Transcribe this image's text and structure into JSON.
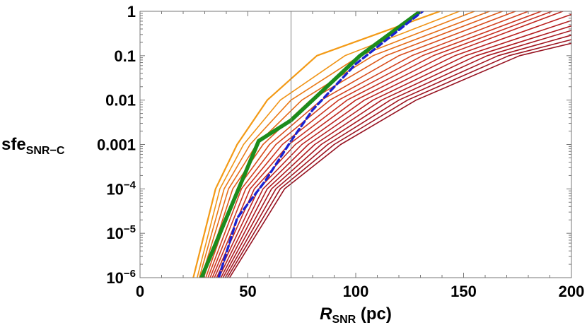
{
  "chart_data": {
    "type": "line",
    "xlabel": {
      "main": "R",
      "sub": "SNR",
      "unit": " (pc)"
    },
    "ylabel": {
      "main": "sfe",
      "sub": "SNR−C"
    },
    "xlim": [
      0,
      200
    ],
    "ylim": [
      1e-06,
      1
    ],
    "y_scale": "log",
    "grid": false,
    "legend": "none",
    "x_ticks": [
      0,
      50,
      100,
      150,
      200
    ],
    "x_tick_labels": [
      "0",
      "50",
      "100",
      "150",
      "200"
    ],
    "y_tick_labels": [
      {
        "value": 1,
        "label": "1"
      },
      {
        "value": 0.1,
        "label": "0.1"
      },
      {
        "value": 0.01,
        "label": "0.01"
      },
      {
        "value": 0.001,
        "label": "0.001"
      },
      {
        "value": 0.0001,
        "label": "10",
        "exp": "−4"
      },
      {
        "value": 1e-05,
        "label": "10",
        "exp": "−5"
      },
      {
        "value": 1e-06,
        "label": "10",
        "exp": "−6"
      }
    ],
    "vertical_line": {
      "x": 70,
      "color": "#808080"
    },
    "series": [
      {
        "points": [
          [
            24.7,
            1e-06
          ],
          [
            35,
            0.0001
          ],
          [
            45,
            0.001
          ],
          [
            59,
            0.01
          ],
          [
            82,
            0.1
          ],
          [
            139,
            1
          ]
        ],
        "color": "#f39a16",
        "width": 2.2,
        "dash": "none"
      },
      {
        "points": [
          [
            26.5,
            1e-06
          ],
          [
            37,
            0.0001
          ],
          [
            48,
            0.001
          ],
          [
            65,
            0.01
          ],
          [
            95,
            0.1
          ],
          [
            148,
            1
          ]
        ],
        "color": "#f09416",
        "width": 1.6,
        "dash": "none"
      },
      {
        "points": [
          [
            27.5,
            1e-06
          ],
          [
            39,
            0.0001
          ],
          [
            51,
            0.001
          ],
          [
            70,
            0.01
          ],
          [
            102,
            0.1
          ],
          [
            155,
            1
          ]
        ],
        "color": "#ea7a16",
        "width": 1.6,
        "dash": "none"
      },
      {
        "points": [
          [
            28.5,
            1e-06
          ],
          [
            41,
            0.0001
          ],
          [
            54,
            0.001
          ],
          [
            75,
            0.01
          ],
          [
            108,
            0.1
          ],
          [
            162,
            1
          ]
        ],
        "color": "#e46a18",
        "width": 1.6,
        "dash": "none"
      },
      {
        "points": [
          [
            29.5,
            1e-06
          ],
          [
            43,
            0.0001
          ],
          [
            57,
            0.001
          ],
          [
            79,
            0.01
          ],
          [
            114,
            0.1
          ],
          [
            168,
            1
          ]
        ],
        "color": "#de5a1a",
        "width": 1.6,
        "dash": "none"
      },
      {
        "points": [
          [
            30.5,
            1e-06
          ],
          [
            45,
            0.0001
          ],
          [
            60,
            0.001
          ],
          [
            84,
            0.01
          ],
          [
            120,
            0.1
          ],
          [
            174,
            1
          ]
        ],
        "color": "#d84c1c",
        "width": 1.6,
        "dash": "none"
      },
      {
        "points": [
          [
            31.5,
            1e-06
          ],
          [
            47,
            0.0001
          ],
          [
            63,
            0.001
          ],
          [
            88,
            0.01
          ],
          [
            126,
            0.1
          ],
          [
            180,
            1
          ]
        ],
        "color": "#d2401e",
        "width": 1.6,
        "dash": "none"
      },
      {
        "points": [
          [
            32.5,
            1e-06
          ],
          [
            49,
            0.0001
          ],
          [
            66,
            0.001
          ],
          [
            92,
            0.01
          ],
          [
            131,
            0.1
          ],
          [
            186,
            1
          ]
        ],
        "color": "#cc3620",
        "width": 1.6,
        "dash": "none"
      },
      {
        "points": [
          [
            33.5,
            1e-06
          ],
          [
            51,
            0.0001
          ],
          [
            69,
            0.001
          ],
          [
            96,
            0.01
          ],
          [
            136,
            0.1
          ],
          [
            191,
            1
          ]
        ],
        "color": "#c62e20",
        "width": 1.6,
        "dash": "none"
      },
      {
        "points": [
          [
            34.5,
            1e-06
          ],
          [
            53,
            0.0001
          ],
          [
            72,
            0.001
          ],
          [
            100,
            0.01
          ],
          [
            141,
            0.1
          ],
          [
            196,
            1
          ]
        ],
        "color": "#c02820",
        "width": 1.6,
        "dash": "none"
      },
      {
        "points": [
          [
            35.5,
            1e-06
          ],
          [
            55,
            0.0001
          ],
          [
            75,
            0.001
          ],
          [
            104,
            0.01
          ],
          [
            146,
            0.1
          ],
          [
            200,
            0.85
          ]
        ],
        "color": "#ba2220",
        "width": 1.6,
        "dash": "none"
      },
      {
        "points": [
          [
            36.5,
            1e-06
          ],
          [
            57,
            0.0001
          ],
          [
            78,
            0.001
          ],
          [
            108,
            0.01
          ],
          [
            151,
            0.1
          ],
          [
            200,
            0.62
          ]
        ],
        "color": "#b41e20",
        "width": 1.6,
        "dash": "none"
      },
      {
        "points": [
          [
            37.5,
            1e-06
          ],
          [
            59,
            0.0001
          ],
          [
            81,
            0.001
          ],
          [
            112,
            0.01
          ],
          [
            156,
            0.1
          ],
          [
            200,
            0.47
          ]
        ],
        "color": "#ae1a20",
        "width": 1.6,
        "dash": "none"
      },
      {
        "points": [
          [
            38.5,
            1e-06
          ],
          [
            61,
            0.0001
          ],
          [
            84,
            0.001
          ],
          [
            116,
            0.01
          ],
          [
            161,
            0.1
          ],
          [
            200,
            0.37
          ]
        ],
        "color": "#a81820",
        "width": 1.6,
        "dash": "none"
      },
      {
        "points": [
          [
            39.5,
            1e-06
          ],
          [
            63,
            0.0001
          ],
          [
            87,
            0.001
          ],
          [
            120,
            0.01
          ],
          [
            166,
            0.1
          ],
          [
            200,
            0.29
          ]
        ],
        "color": "#a21620",
        "width": 1.6,
        "dash": "none"
      },
      {
        "points": [
          [
            40.5,
            1e-06
          ],
          [
            65,
            0.0001
          ],
          [
            90,
            0.001
          ],
          [
            124,
            0.01
          ],
          [
            171,
            0.1
          ],
          [
            200,
            0.23
          ]
        ],
        "color": "#9c1420",
        "width": 1.6,
        "dash": "none"
      },
      {
        "points": [
          [
            41.5,
            1e-06
          ],
          [
            67,
            0.0001
          ],
          [
            93,
            0.001
          ],
          [
            128,
            0.01
          ],
          [
            176,
            0.1
          ],
          [
            200,
            0.19
          ]
        ],
        "color": "#961220",
        "width": 1.6,
        "dash": "none"
      },
      {
        "points": [
          [
            28.5,
            1e-06
          ],
          [
            40,
            2.2e-05
          ],
          [
            55,
            0.0012
          ],
          [
            70,
            0.0035
          ],
          [
            80,
            0.01
          ],
          [
            102,
            0.1
          ],
          [
            130,
            1
          ]
        ],
        "color": "#1c8c1c",
        "width": 5.5,
        "dash": "none"
      },
      {
        "points": [
          [
            36.5,
            1e-06
          ],
          [
            45,
            2.2e-05
          ],
          [
            58,
            0.00015
          ],
          [
            70,
            0.0012
          ],
          [
            80,
            0.006
          ],
          [
            100,
            0.065
          ],
          [
            131,
            1
          ]
        ],
        "color": "#1a22d0",
        "width": 3.4,
        "dash": "8,5"
      }
    ]
  }
}
